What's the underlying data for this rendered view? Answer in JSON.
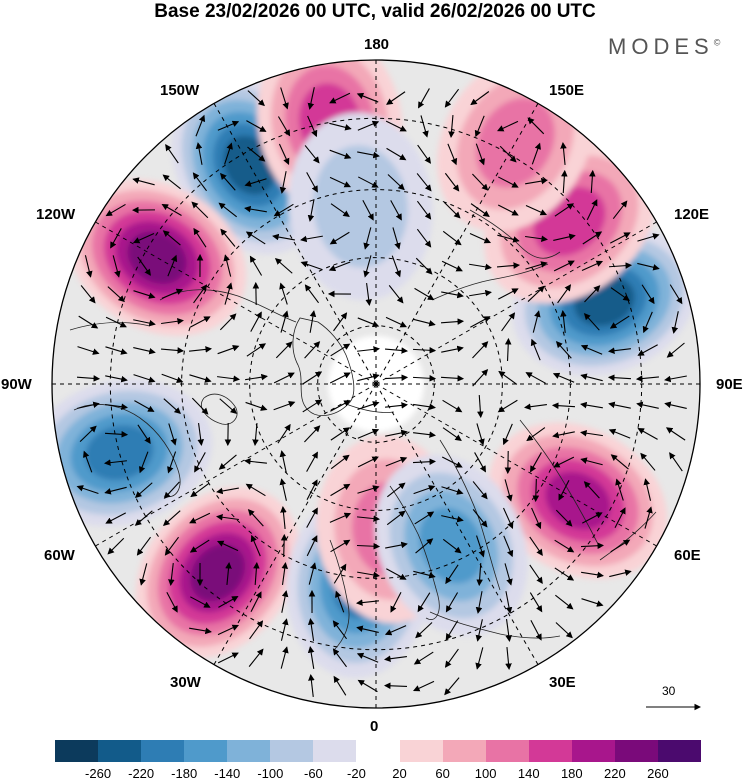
{
  "header": {
    "title": "Base 23/02/2026 00 UTC, valid 26/02/2026 00 UTC",
    "brand": "MODES",
    "brand_mark": "©"
  },
  "map": {
    "projection": "north-polar-stereographic",
    "longitude_labels": {
      "lon_180": "180",
      "lon_150w": "150W",
      "lon_150e": "150E",
      "lon_120w": "120W",
      "lon_120e": "120E",
      "lon_90w": "90W",
      "lon_90e": "90E",
      "lon_60w": "60W",
      "lon_60e": "60E",
      "lon_30w": "30W",
      "lon_30e": "30E",
      "lon_0": "0"
    },
    "reference_vector": "30",
    "anomaly_centres": [
      {
        "sign": "negative",
        "longitude": "150W",
        "value": -220
      },
      {
        "sign": "positive",
        "longitude": "120W",
        "value": 240
      },
      {
        "sign": "negative",
        "longitude": "110E",
        "value": -220
      },
      {
        "sign": "positive",
        "longitude": "60E",
        "value": 200
      },
      {
        "sign": "negative",
        "longitude": "75W",
        "value": -180
      },
      {
        "sign": "positive",
        "longitude": "40W",
        "value": 240
      },
      {
        "sign": "negative",
        "longitude": "5W",
        "value": -200
      },
      {
        "sign": "positive",
        "longitude": "170W",
        "value": 140
      },
      {
        "sign": "positive",
        "longitude": "130E",
        "value": 140
      },
      {
        "sign": "positive",
        "longitude": "150E",
        "value": 120
      },
      {
        "sign": "positive",
        "longitude": "5E",
        "value": 100
      },
      {
        "sign": "negative",
        "longitude": "25E",
        "value": -140
      },
      {
        "sign": "negative",
        "longitude": "175W",
        "value": -60
      }
    ]
  },
  "colorbar": {
    "ticks": [
      "-260",
      "-220",
      "-180",
      "-140",
      "-100",
      "-60",
      "-20",
      "20",
      "60",
      "100",
      "140",
      "180",
      "220",
      "260"
    ],
    "colors": [
      "#0c3a5c",
      "#125b8a",
      "#2e7db4",
      "#4f9acb",
      "#7fb2d9",
      "#b4c8e2",
      "#dcdcec",
      "#ffffff",
      "#f9d3d6",
      "#f3a8b8",
      "#e873a5",
      "#d33997",
      "#a8168c",
      "#7a0a7a",
      "#4b0a6e"
    ]
  }
}
